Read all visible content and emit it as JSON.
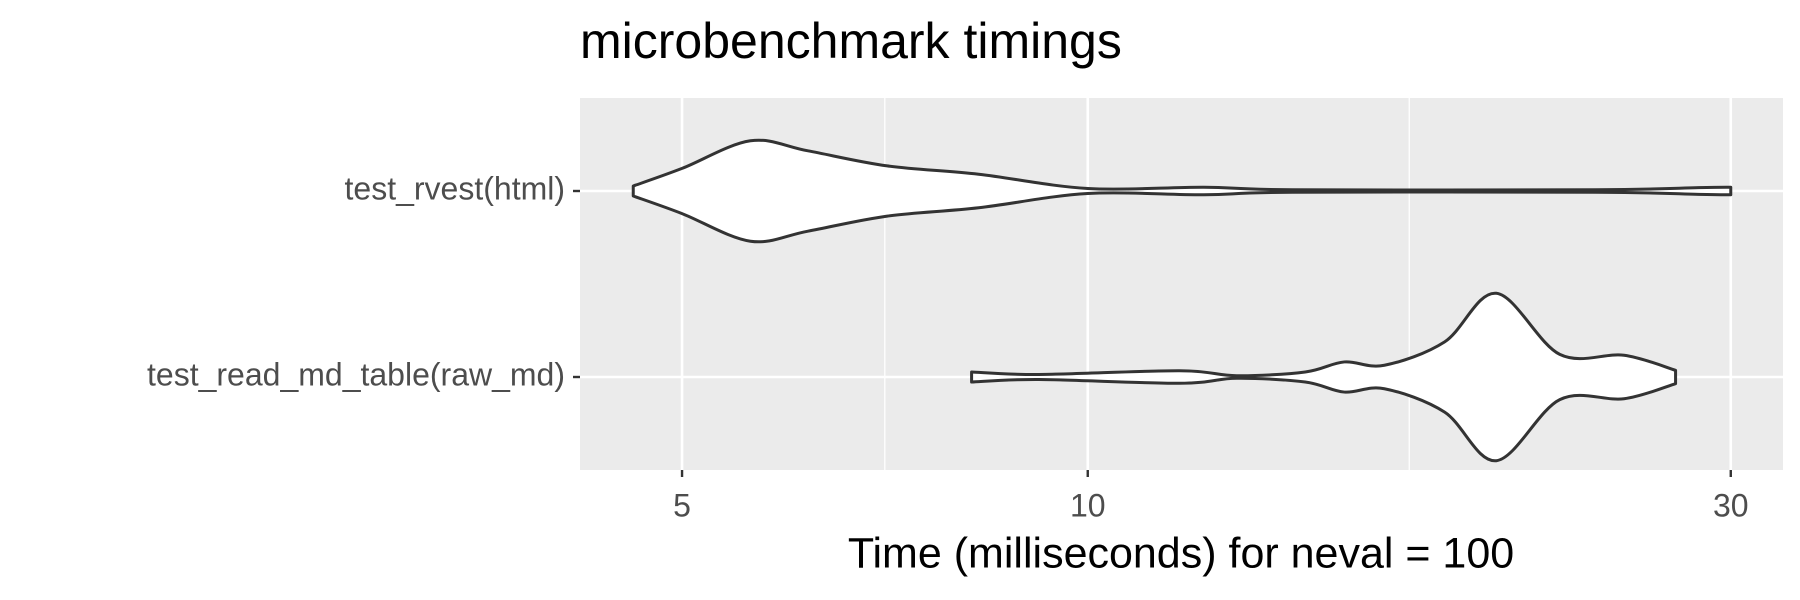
{
  "chart_data": {
    "type": "violin",
    "title": "microbenchmark timings",
    "xlabel": "Time (milliseconds) for neval = 100",
    "categories": [
      "test_rvest(html)",
      "test_read_md_table(raw_md)"
    ],
    "violins": [
      {
        "x": [
          4.6,
          5.0,
          5.62,
          6.2,
          7.1,
          8.3,
          10,
          12.2,
          14.2,
          23.8,
          28.4,
          30
        ],
        "density": [
          0.06,
          0.27,
          0.6,
          0.48,
          0.3,
          0.2,
          0.03,
          0.045,
          0.015,
          0.015,
          0.04,
          0.045
        ]
      },
      {
        "x": [
          8.2,
          9.2,
          11.7,
          12.9,
          14.5,
          15.5,
          16.6,
          18.4,
          20.1,
          22.4,
          25,
          27.3
        ],
        "density": [
          0.06,
          0.03,
          0.075,
          0.015,
          0.06,
          0.18,
          0.14,
          0.42,
          1,
          0.27,
          0.26,
          0.08
        ]
      }
    ],
    "log_x": true,
    "xlim": [
      4.2,
      32.8
    ],
    "xticks": [
      5,
      10,
      30
    ],
    "minor_xticks": [
      7.07,
      17.32
    ],
    "grid": true,
    "fill": "#ffffff",
    "stroke": "#333333",
    "panel_color": "#ebebeb"
  }
}
